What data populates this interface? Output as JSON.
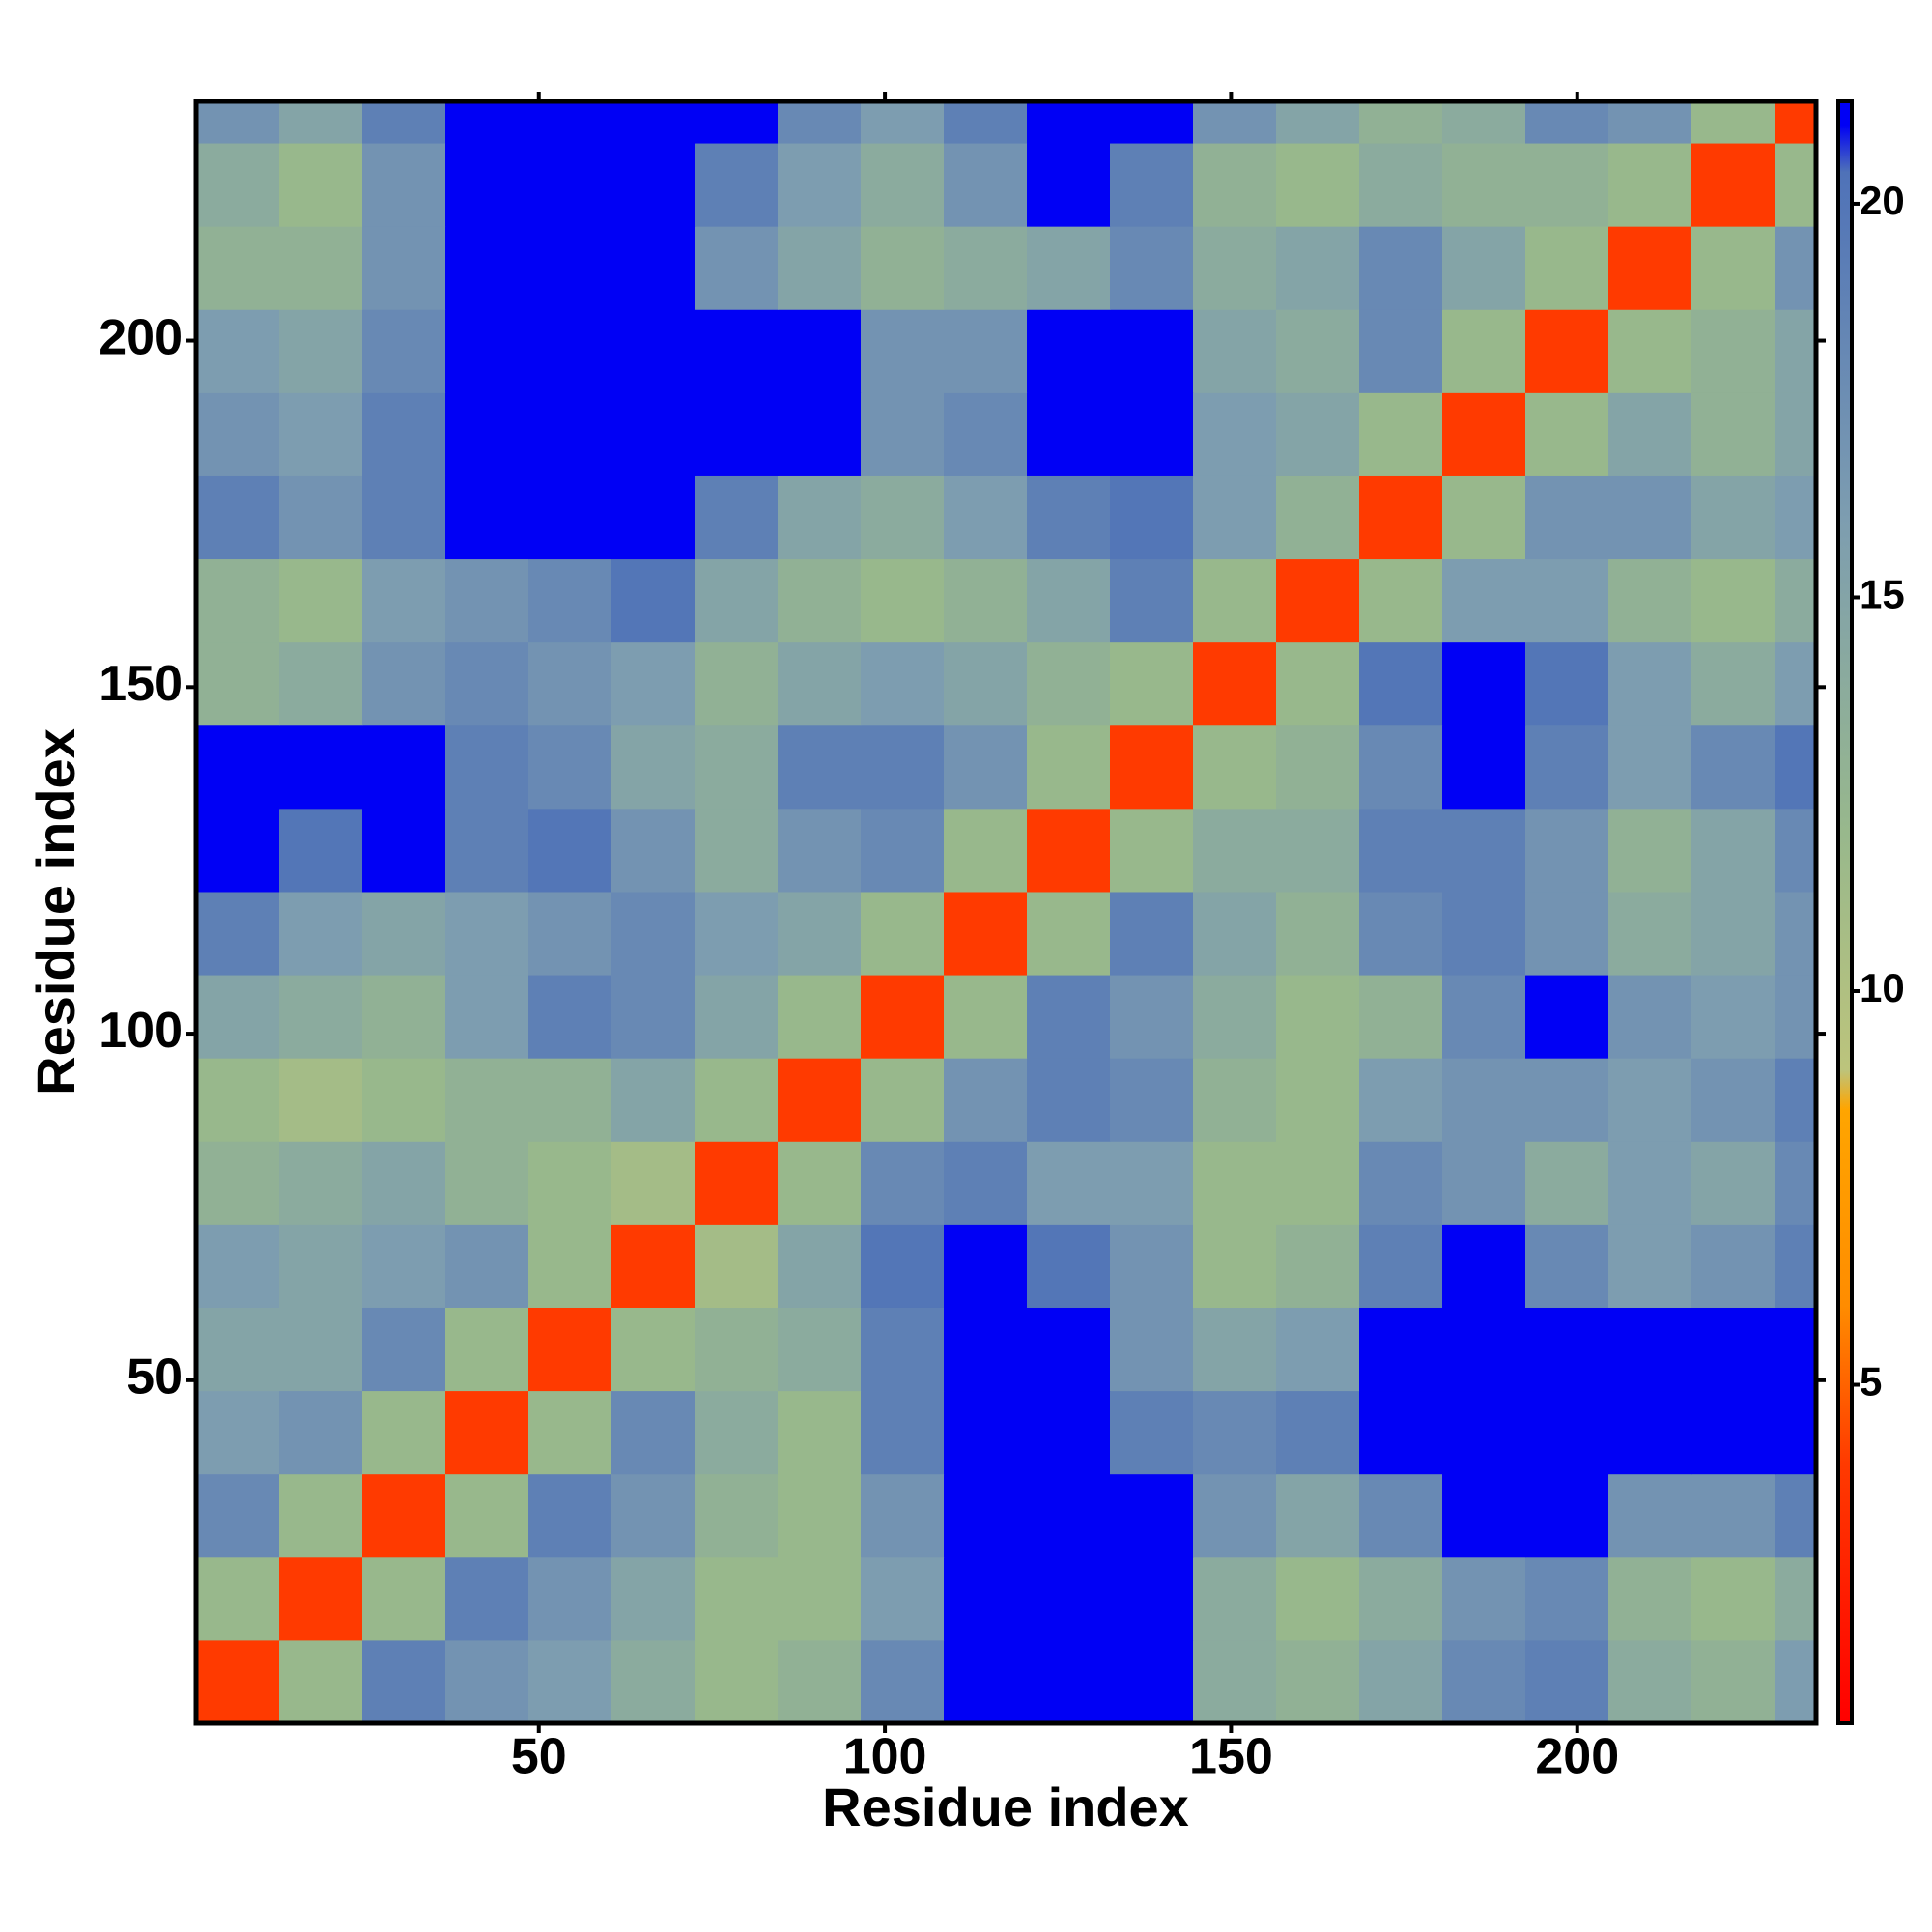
{
  "chart_data": {
    "type": "heatmap",
    "xlabel": "Residue index",
    "ylabel": "Residue index",
    "xlim": [
      0.5,
      234.5
    ],
    "ylim": [
      0.5,
      234.5
    ],
    "xticks": [
      50,
      100,
      150,
      200
    ],
    "yticks": [
      50,
      100,
      150,
      200
    ],
    "x_bins": [
      0.5,
      12.5,
      24.5,
      36.5,
      48.5,
      60.5,
      72.5,
      84.5,
      96.5,
      108.5,
      120.5,
      132.5,
      144.5,
      156.5,
      168.5,
      180.5,
      192.5,
      204.5,
      216.5,
      228.5,
      234.5
    ],
    "y_bins": [
      0.5,
      12.5,
      24.5,
      36.5,
      48.5,
      60.5,
      72.5,
      84.5,
      96.5,
      108.5,
      120.5,
      132.5,
      144.5,
      156.5,
      168.5,
      180.5,
      192.5,
      204.5,
      216.5,
      228.5,
      234.5
    ],
    "z": [
      [
        4,
        12,
        19,
        17,
        16,
        14,
        12,
        13,
        18,
        21,
        21,
        21,
        14,
        13,
        15,
        18,
        19,
        14,
        13,
        16
      ],
      [
        12,
        4,
        12,
        19,
        17,
        15,
        12,
        12,
        16,
        21,
        21,
        21,
        14,
        12,
        14,
        17,
        18,
        13,
        12,
        14
      ],
      [
        18,
        12,
        4,
        12,
        19,
        17,
        13,
        12,
        17,
        21,
        21,
        21,
        17,
        15,
        18,
        21,
        21,
        17,
        17,
        19
      ],
      [
        16,
        17,
        12,
        4,
        12,
        18,
        14,
        12,
        19,
        21,
        21,
        19,
        18,
        19,
        21,
        21,
        21,
        21,
        21,
        21
      ],
      [
        15,
        15,
        18,
        12,
        4,
        12,
        13,
        14,
        19,
        21,
        21,
        17,
        15,
        16,
        21,
        21,
        21,
        21,
        21,
        21
      ],
      [
        16,
        15,
        16,
        17,
        12,
        4,
        11,
        15,
        20,
        21,
        20,
        17,
        12,
        13,
        19,
        21,
        18,
        16,
        17,
        19
      ],
      [
        13,
        14,
        15,
        13,
        12,
        11,
        4,
        12,
        18,
        19,
        16,
        16,
        12,
        12,
        18,
        17,
        14,
        16,
        15,
        18
      ],
      [
        12,
        11,
        12,
        13,
        13,
        15,
        12,
        4,
        12,
        17,
        19,
        18,
        13,
        12,
        16,
        17,
        17,
        16,
        17,
        19
      ],
      [
        15,
        14,
        13,
        16,
        19,
        18,
        15,
        12,
        4,
        12,
        19,
        17,
        14,
        12,
        13,
        18,
        21,
        17,
        16,
        17
      ],
      [
        19,
        16,
        15,
        16,
        17,
        18,
        16,
        15,
        12,
        4,
        12,
        19,
        15,
        13,
        18,
        19,
        17,
        14,
        15,
        17
      ],
      [
        21,
        20,
        21,
        19,
        20,
        17,
        14,
        17,
        18,
        12,
        4,
        12,
        14,
        14,
        19,
        19,
        17,
        13,
        15,
        18
      ],
      [
        21,
        21,
        21,
        19,
        18,
        15,
        14,
        19,
        19,
        17,
        12,
        4,
        12,
        13,
        18,
        21,
        19,
        16,
        18,
        20
      ],
      [
        13,
        14,
        17,
        18,
        17,
        16,
        13,
        15,
        16,
        15,
        13,
        12,
        4,
        12,
        20,
        21,
        20,
        16,
        14,
        16
      ],
      [
        13,
        12,
        16,
        17,
        18,
        20,
        15,
        13,
        12,
        13,
        15,
        19,
        12,
        4,
        12,
        16,
        16,
        13,
        12,
        14
      ],
      [
        19,
        17,
        19,
        21,
        21,
        21,
        19,
        15,
        14,
        16,
        19,
        20,
        16,
        13,
        4,
        12,
        17,
        17,
        15,
        16
      ],
      [
        17,
        16,
        19,
        21,
        21,
        21,
        21,
        21,
        17,
        18,
        21,
        21,
        16,
        15,
        12,
        4,
        12,
        15,
        13,
        15
      ],
      [
        16,
        15,
        18,
        21,
        21,
        21,
        21,
        21,
        17,
        17,
        21,
        21,
        15,
        14,
        18,
        12,
        4,
        12,
        13,
        15
      ],
      [
        13,
        13,
        17,
        21,
        21,
        21,
        17,
        15,
        13,
        14,
        15,
        18,
        14,
        15,
        18,
        15,
        12,
        4,
        12,
        17
      ],
      [
        14,
        12,
        17,
        21,
        21,
        21,
        19,
        16,
        14,
        17,
        21,
        19,
        13,
        12,
        14,
        13,
        13,
        12,
        4,
        12
      ],
      [
        17,
        15,
        19,
        21,
        21,
        21,
        21,
        18,
        16,
        19,
        21,
        21,
        17,
        15,
        13,
        14,
        18,
        17,
        12,
        4
      ]
    ],
    "colorbar": {
      "zlim": [
        0.7,
        21.3
      ],
      "ticks": [
        5,
        10,
        15,
        20
      ],
      "colormap": [
        [
          0.7,
          "#ff0000"
        ],
        [
          4,
          "#ff3a00"
        ],
        [
          6,
          "#ff8c00"
        ],
        [
          8.5,
          "#ffa500"
        ],
        [
          9,
          "#bcc47c"
        ],
        [
          12,
          "#98b88c"
        ],
        [
          16,
          "#7d9db0"
        ],
        [
          20.4,
          "#4f72b8"
        ],
        [
          21,
          "#0000f5"
        ],
        [
          21.3,
          "#0000f5"
        ]
      ]
    }
  }
}
